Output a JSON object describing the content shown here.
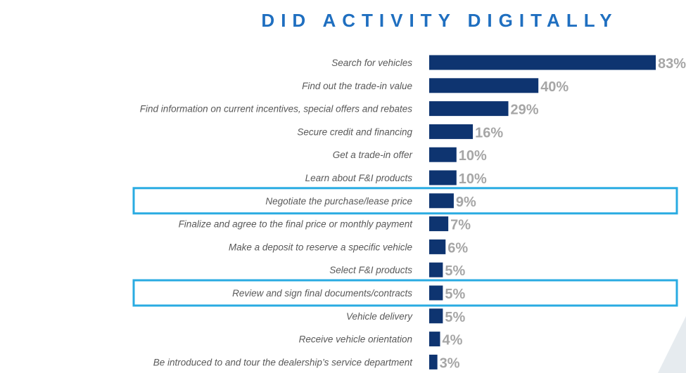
{
  "chart_data": {
    "type": "bar",
    "orientation": "horizontal",
    "title": "DID ACTIVITY DIGITALLY",
    "categories": [
      "Search for vehicles",
      "Find out the trade-in value",
      "Find information on current incentives, special offers and rebates",
      "Secure credit and financing",
      "Get a trade-in offer",
      "Learn about F&I products",
      "Negotiate the purchase/lease price",
      "Finalize and agree to the final price or monthly payment",
      "Make a deposit to reserve a specific vehicle",
      "Select F&I products",
      "Review and sign final documents/contracts",
      "Vehicle delivery",
      "Receive vehicle orientation",
      "Be introduced to and tour the dealership’s service department"
    ],
    "values": [
      83,
      40,
      29,
      16,
      10,
      10,
      9,
      7,
      6,
      5,
      5,
      5,
      4,
      3
    ],
    "value_labels": [
      "83%",
      "40%",
      "29%",
      "16%",
      "10%",
      "10%",
      "9%",
      "7%",
      "6%",
      "5%",
      "5%",
      "5%",
      "4%",
      "3%"
    ],
    "highlighted": [
      "Negotiate the purchase/lease price",
      "Review and sign final documents/contracts"
    ],
    "xlim": [
      0,
      100
    ],
    "grid": false,
    "colors": {
      "bar": "#0e3470",
      "title": "#1f6fc0",
      "value_label": "#a6a6a6",
      "category_label": "#595959",
      "highlight_box": "#29abe2"
    }
  }
}
